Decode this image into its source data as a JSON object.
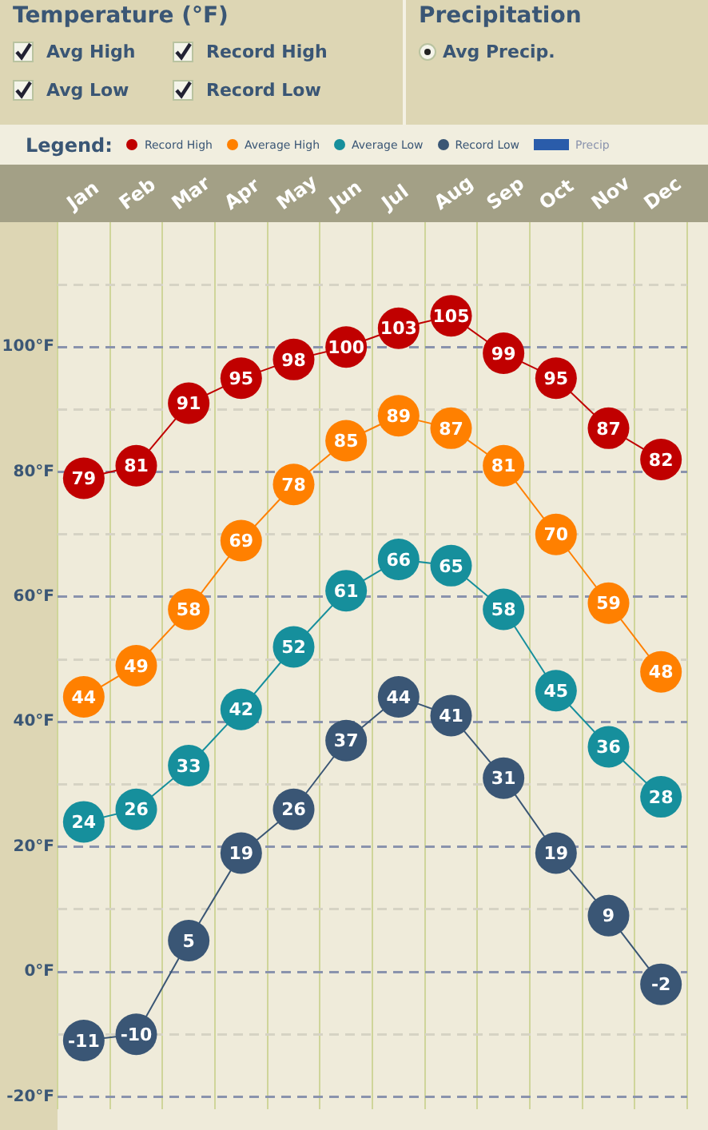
{
  "chart_data": {
    "type": "line",
    "annotations": [
      "Temperature (°F)",
      "Avg High",
      "Record High",
      "Avg Low",
      "Record Low",
      "Precipitation",
      "Avg Precip.",
      "Legend:"
    ],
    "categories": [
      "Jan",
      "Feb",
      "Mar",
      "Apr",
      "May",
      "Jun",
      "Jul",
      "Aug",
      "Sep",
      "Oct",
      "Nov",
      "Dec"
    ],
    "series": [
      {
        "name": "Record High",
        "color": "#c00000",
        "values": [
          79,
          81,
          91,
          95,
          98,
          100,
          103,
          105,
          99,
          95,
          87,
          82
        ]
      },
      {
        "name": "Average High",
        "color": "#ff8000",
        "values": [
          44,
          49,
          58,
          69,
          78,
          85,
          89,
          87,
          81,
          70,
          59,
          48
        ]
      },
      {
        "name": "Average Low",
        "color": "#168f9c",
        "values": [
          24,
          26,
          33,
          42,
          52,
          61,
          66,
          65,
          58,
          45,
          36,
          28
        ]
      },
      {
        "name": "Record Low",
        "color": "#3a5675",
        "values": [
          -11,
          -10,
          5,
          19,
          26,
          37,
          44,
          41,
          31,
          19,
          9,
          -2
        ]
      },
      {
        "name": "Precip",
        "type": "bar",
        "color": "#2a5caa",
        "values": [
          null,
          null,
          null,
          null,
          null,
          null,
          null,
          null,
          null,
          null,
          null,
          null
        ]
      }
    ],
    "ylim": [
      -22,
      120
    ],
    "yticks": [
      {
        "value": -20,
        "label": "-20°F"
      },
      {
        "value": -10,
        "label": null
      },
      {
        "value": 0,
        "label": "0°F"
      },
      {
        "value": 10,
        "label": null
      },
      {
        "value": 20,
        "label": "20°F"
      },
      {
        "value": 30,
        "label": null
      },
      {
        "value": 40,
        "label": "40°F"
      },
      {
        "value": 50,
        "label": null
      },
      {
        "value": 60,
        "label": "60°F"
      },
      {
        "value": 70,
        "label": null
      },
      {
        "value": 80,
        "label": "80°F"
      },
      {
        "value": 90,
        "label": null
      },
      {
        "value": 100,
        "label": "100°F"
      },
      {
        "value": 110,
        "label": null
      }
    ],
    "grid": true,
    "legend": "top",
    "marker": "circle",
    "line_style": "solid",
    "data_labels": true
  }
}
